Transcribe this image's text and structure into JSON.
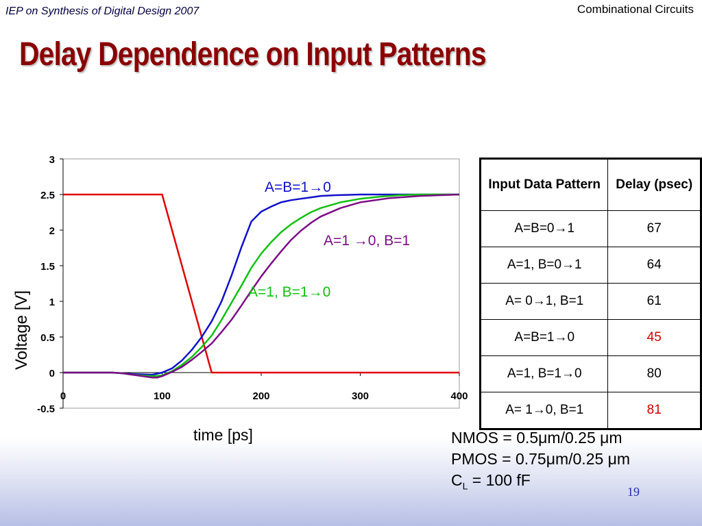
{
  "header": {
    "left": "IEP on Synthesis of Digital Design 2007",
    "right": "Combinational Circuits"
  },
  "slide": {
    "title": "Delay Dependence on Input Patterns",
    "page": "19"
  },
  "chart_data": {
    "type": "line",
    "ylabel": "Voltage [V]",
    "xlabel": "time [ps]",
    "xlim": [
      0,
      400
    ],
    "ylim": [
      -0.5,
      3
    ],
    "xticks": [
      "0",
      "100",
      "200",
      "300",
      "400"
    ],
    "yticks": [
      "3",
      "2.5",
      "2",
      "1.5",
      "1",
      "0.5",
      "0",
      "-0.5"
    ],
    "grid": "off",
    "series": [
      {
        "name": "input",
        "color": "#e00000",
        "x": [
          0,
          100,
          150,
          400
        ],
        "y": [
          2.5,
          2.5,
          0,
          0
        ]
      },
      {
        "name": "A=B=1→0",
        "color": "#1010cc",
        "x": [
          0,
          50,
          70,
          90,
          100,
          110,
          120,
          130,
          140,
          150,
          160,
          170,
          180,
          190,
          200,
          210,
          220,
          230,
          240,
          250,
          260,
          275,
          300,
          350,
          400
        ],
        "y": [
          0,
          0,
          -0.02,
          -0.03,
          0,
          0.06,
          0.17,
          0.32,
          0.5,
          0.72,
          1.0,
          1.36,
          1.76,
          2.12,
          2.26,
          2.33,
          2.39,
          2.42,
          2.44,
          2.46,
          2.48,
          2.49,
          2.5,
          2.5,
          2.5
        ]
      },
      {
        "name": "A=1, B=1→0",
        "color": "#10c010",
        "x": [
          0,
          50,
          60,
          70,
          80,
          90,
          100,
          110,
          120,
          130,
          140,
          150,
          160,
          170,
          180,
          190,
          200,
          210,
          220,
          230,
          240,
          250,
          260,
          280,
          300,
          320,
          340,
          360,
          400
        ],
        "y": [
          0,
          0,
          -0.01,
          -0.03,
          -0.04,
          -0.05,
          -0.04,
          0.02,
          0.11,
          0.22,
          0.36,
          0.52,
          0.74,
          0.98,
          1.22,
          1.47,
          1.67,
          1.83,
          1.97,
          2.08,
          2.17,
          2.25,
          2.31,
          2.39,
          2.44,
          2.47,
          2.49,
          2.5,
          2.5
        ]
      },
      {
        "name": "A=1 →0, B=1",
        "color": "#7b0c84",
        "x": [
          0,
          50,
          60,
          70,
          80,
          90,
          95,
          100,
          110,
          120,
          130,
          140,
          150,
          160,
          170,
          180,
          190,
          200,
          210,
          220,
          230,
          240,
          250,
          260,
          280,
          300,
          330,
          360,
          400
        ],
        "y": [
          0,
          0,
          -0.01,
          -0.03,
          -0.05,
          -0.07,
          -0.07,
          -0.05,
          0.01,
          0.08,
          0.18,
          0.29,
          0.41,
          0.57,
          0.74,
          0.94,
          1.15,
          1.35,
          1.53,
          1.7,
          1.86,
          1.99,
          2.1,
          2.19,
          2.31,
          2.39,
          2.45,
          2.48,
          2.5
        ]
      }
    ],
    "annotations": [
      {
        "text": "A=B=1→0",
        "color": "#1010cc"
      },
      {
        "text": "A=1 →0, B=1",
        "color": "#7b0c84"
      },
      {
        "text": "A=1, B=1→0",
        "color": "#10c010"
      }
    ]
  },
  "table": {
    "headers": [
      "Input Data Pattern",
      "Delay (psec)"
    ],
    "rows": [
      {
        "pattern": "A=B=0→1",
        "delay": "67",
        "color": "#000000"
      },
      {
        "pattern": "A=1, B=0→1",
        "delay": "64",
        "color": "#000000"
      },
      {
        "pattern": "A= 0→1, B=1",
        "delay": "61",
        "color": "#000000"
      },
      {
        "pattern": "A=B=1→0",
        "delay": "45",
        "color": "#cc0000"
      },
      {
        "pattern": "A=1, B=1→0",
        "delay": "80",
        "color": "#000000"
      },
      {
        "pattern": "A= 1→0, B=1",
        "delay": "81",
        "color": "#cc0000"
      }
    ]
  },
  "params": {
    "nmos": "NMOS = 0.5μm/0.25 μm",
    "pmos": "PMOS = 0.75μm/0.25 μm",
    "cl_prefix": "C",
    "cl_sub": "L",
    "cl_suffix": " = 100 fF"
  }
}
